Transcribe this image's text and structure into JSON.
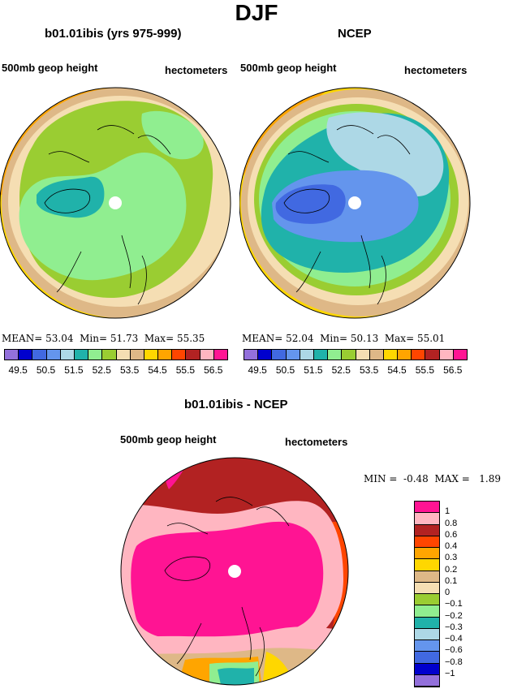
{
  "page": {
    "title": "DJF"
  },
  "panels": {
    "left": {
      "title": "b01.01ibis (yrs 975-999)",
      "field": "500mb geop height",
      "units": "hectometers",
      "mean_label": "MEAN=",
      "mean": "53.04",
      "min_label": "Min=",
      "min": "51.73",
      "max_label": "Max=",
      "max": "55.35"
    },
    "right": {
      "title": "NCEP",
      "field": "500mb geop height",
      "units": "hectometers",
      "mean_label": "MEAN=",
      "mean": "52.04",
      "min_label": "Min=",
      "min": "50.13",
      "max_label": "Max=",
      "max": "55.01"
    },
    "diff": {
      "title": "b01.01ibis - NCEP",
      "field": "500mb geop height",
      "units": "hectometers",
      "min_label": "MIN =",
      "min": "-0.48",
      "max_label": "MAX =",
      "max": "1.89"
    }
  },
  "colorbar_abs": {
    "colors": [
      "#9370db",
      "#0000cd",
      "#4169e1",
      "#6495ed",
      "#add8e6",
      "#20b2aa",
      "#90ee90",
      "#9acd32",
      "#f5deb3",
      "#deb887",
      "#ffd700",
      "#ffa500",
      "#ff4500",
      "#b22222",
      "#ffb6c1",
      "#ff1493"
    ],
    "labels": [
      "49.5",
      "50.5",
      "51.5",
      "52.5",
      "53.5",
      "54.5",
      "55.5",
      "56.5"
    ]
  },
  "colorbar_diff": {
    "colors": [
      "#ff1493",
      "#ffb6c1",
      "#b22222",
      "#ff4500",
      "#ffa500",
      "#ffd700",
      "#deb887",
      "#f5deb3",
      "#9acd32",
      "#90ee90",
      "#20b2aa",
      "#add8e6",
      "#6495ed",
      "#4169e1",
      "#0000cd",
      "#9370db"
    ],
    "labels": [
      "1",
      "0.8",
      "0.6",
      "0.4",
      "0.3",
      "0.2",
      "0.1",
      "0",
      "−0.1",
      "−0.2",
      "−0.3",
      "−0.4",
      "−0.6",
      "−0.8",
      "−1"
    ]
  }
}
